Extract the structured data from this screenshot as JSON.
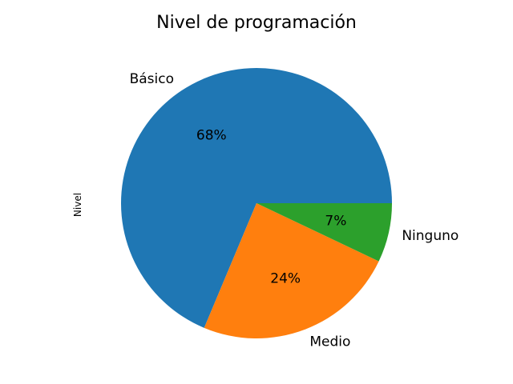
{
  "chart_data": {
    "type": "pie",
    "title": "Nivel de programación",
    "ylabel": "Nivel",
    "start_angle_deg": 0,
    "direction": "counterclockwise",
    "slices": [
      {
        "label": "Básico",
        "value": 68,
        "pct_label": "68%",
        "color": "#1f77b4"
      },
      {
        "label": "Medio",
        "value": 24,
        "pct_label": "24%",
        "color": "#ff7f0e"
      },
      {
        "label": "Ninguno",
        "value": 7,
        "pct_label": "7%",
        "color": "#2ca02c"
      }
    ]
  }
}
